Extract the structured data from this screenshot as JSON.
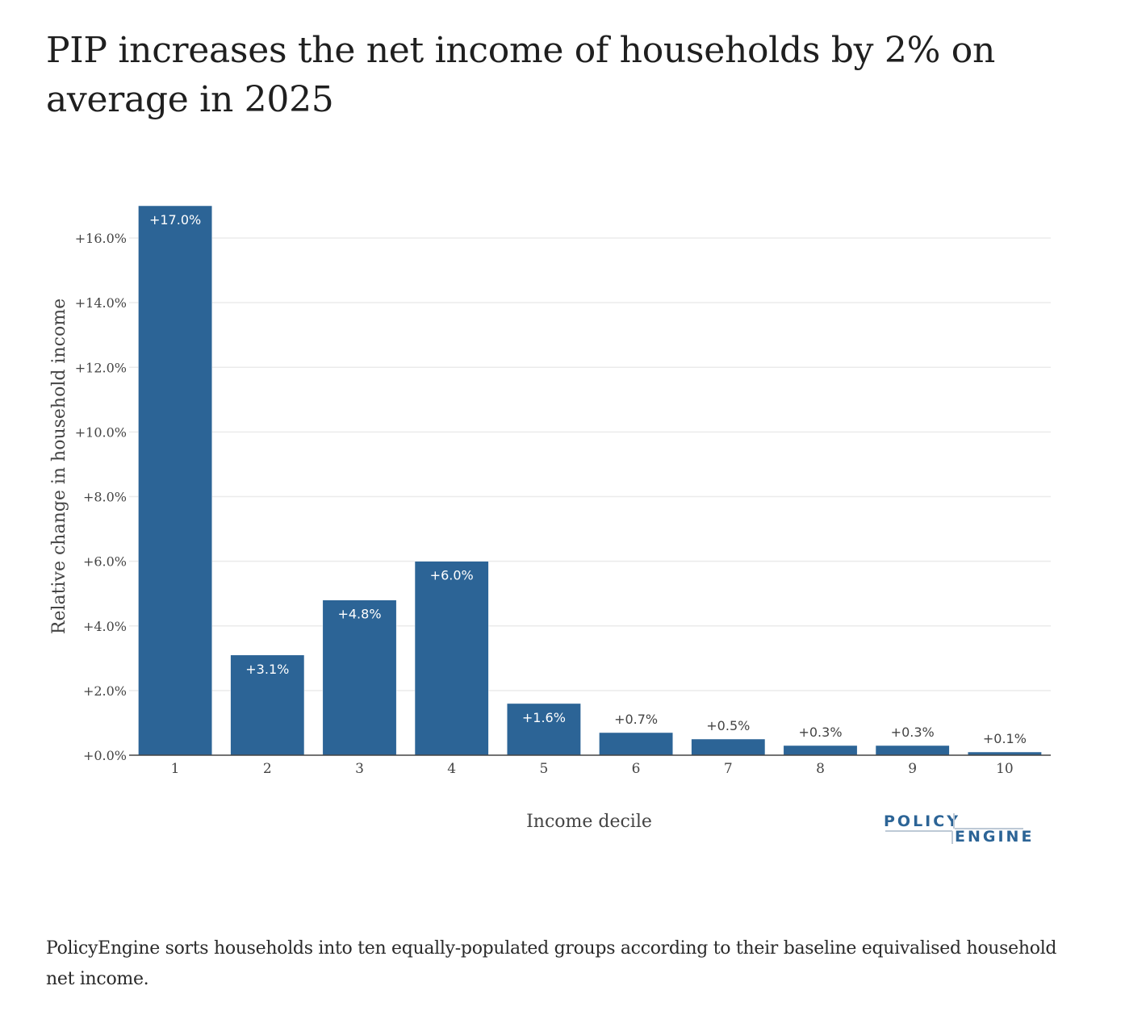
{
  "page": {
    "title": "PIP increases the net income of households by 2% on average in 2025",
    "caption": "PolicyEngine sorts households into ten equally-populated groups according to their baseline equivalised household net income."
  },
  "logo": {
    "line1": "POLICY",
    "line2": "ENGINE",
    "color": "#2C6496",
    "rule_color": "#BDC9D6"
  },
  "colors": {
    "bar": "#2C6496",
    "grid": "#EBEBEB",
    "axis": "#444444",
    "label_inside": "#FFFFFF",
    "label_outside": "#444444"
  },
  "chart_data": {
    "type": "bar",
    "title": "PIP increases the net income of households by 2% on average in 2025",
    "xlabel": "Income decile",
    "ylabel": "Relative change in household income",
    "categories": [
      "1",
      "2",
      "3",
      "4",
      "5",
      "6",
      "7",
      "8",
      "9",
      "10"
    ],
    "values": [
      17.0,
      3.1,
      4.8,
      6.0,
      1.6,
      0.7,
      0.5,
      0.3,
      0.3,
      0.1
    ],
    "data_labels": [
      "+17.0%",
      "+3.1%",
      "+4.8%",
      "+6.0%",
      "+1.6%",
      "+0.7%",
      "+0.5%",
      "+0.3%",
      "+0.3%",
      "+0.1%"
    ],
    "label_position": [
      "inside",
      "inside",
      "inside",
      "inside",
      "inside",
      "outside",
      "outside",
      "outside",
      "outside",
      "outside"
    ],
    "yticks": [
      0,
      2,
      4,
      6,
      8,
      10,
      12,
      14,
      16
    ],
    "ytick_labels": [
      "+0.0%",
      "+2.0%",
      "+4.0%",
      "+6.0%",
      "+8.0%",
      "+10.0%",
      "+12.0%",
      "+14.0%",
      "+16.0%"
    ],
    "ylim": [
      0,
      17.0
    ],
    "grid": true,
    "legend": "none"
  }
}
